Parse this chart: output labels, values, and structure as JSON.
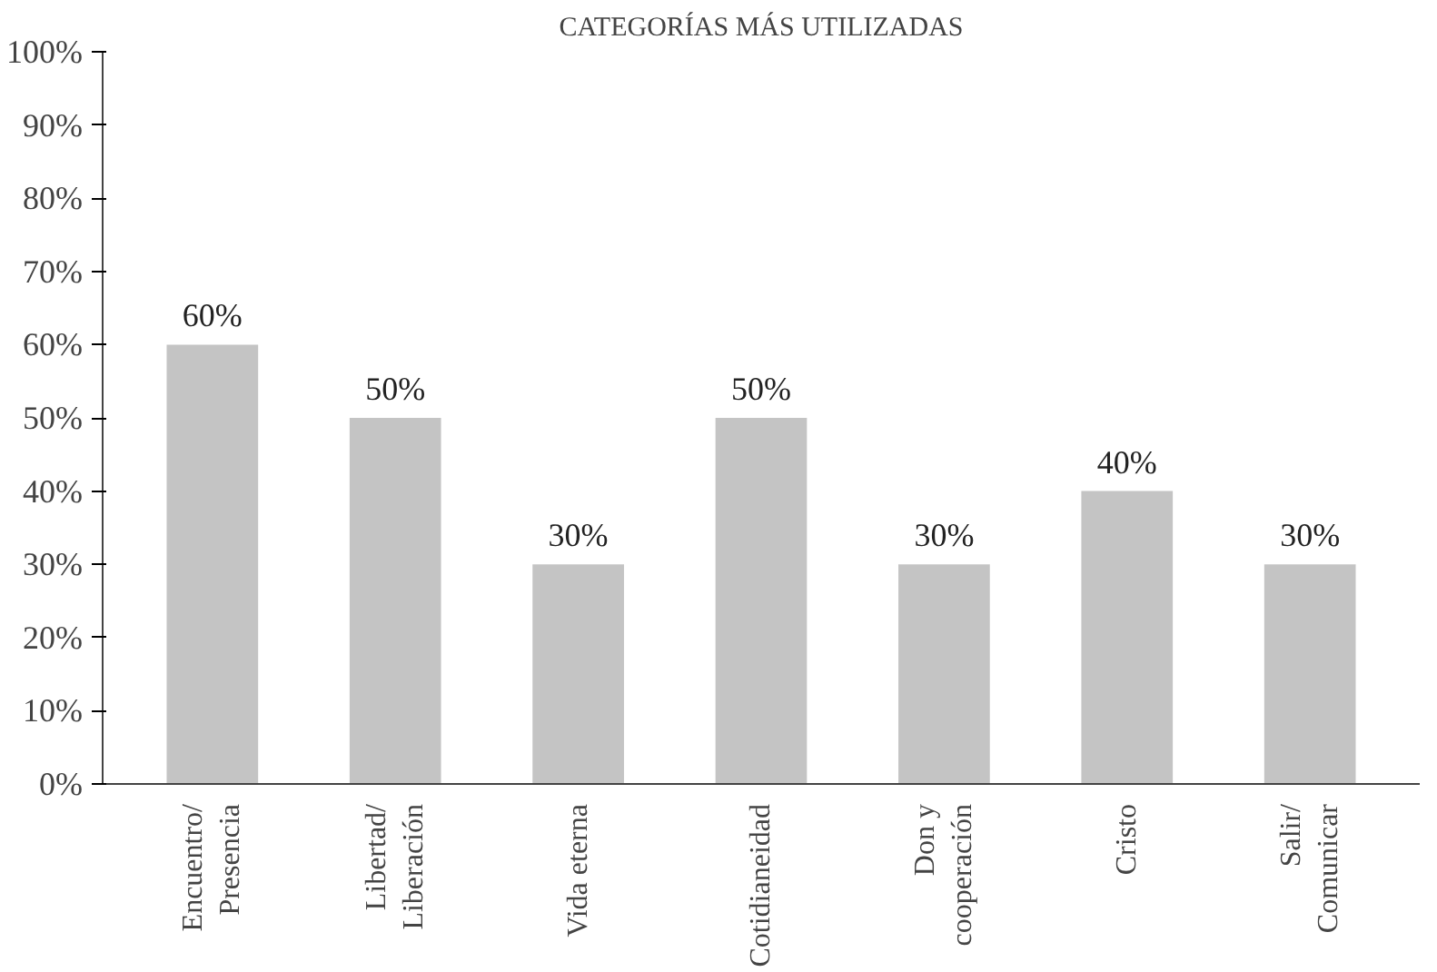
{
  "chart_data": {
    "type": "bar",
    "title": "CATEGORÍAS MÁS UTILIZADAS",
    "categories": [
      "Encuentro/\nPresencia",
      "Libertad/\nLiberación",
      "Vida eterna",
      "Cotidianeidad",
      "Don y\ncooperación",
      "Cristo",
      "Salir/\nComunicar"
    ],
    "values": [
      60,
      50,
      30,
      50,
      30,
      40,
      30
    ],
    "value_labels": [
      "60%",
      "50%",
      "30%",
      "50%",
      "30%",
      "40%",
      "30%"
    ],
    "color": "#c4c4c4",
    "ylim": [
      0,
      100
    ],
    "yticks": [
      {
        "value": 0,
        "label": "0%"
      },
      {
        "value": 10,
        "label": "10%"
      },
      {
        "value": 20,
        "label": "20%"
      },
      {
        "value": 30,
        "label": "30%"
      },
      {
        "value": 40,
        "label": "40%"
      },
      {
        "value": 50,
        "label": "50%"
      },
      {
        "value": 60,
        "label": "60%"
      },
      {
        "value": 70,
        "label": "70%"
      },
      {
        "value": 80,
        "label": "80%"
      },
      {
        "value": 90,
        "label": "90%"
      },
      {
        "value": 100,
        "label": "100%"
      }
    ],
    "grid": false
  }
}
